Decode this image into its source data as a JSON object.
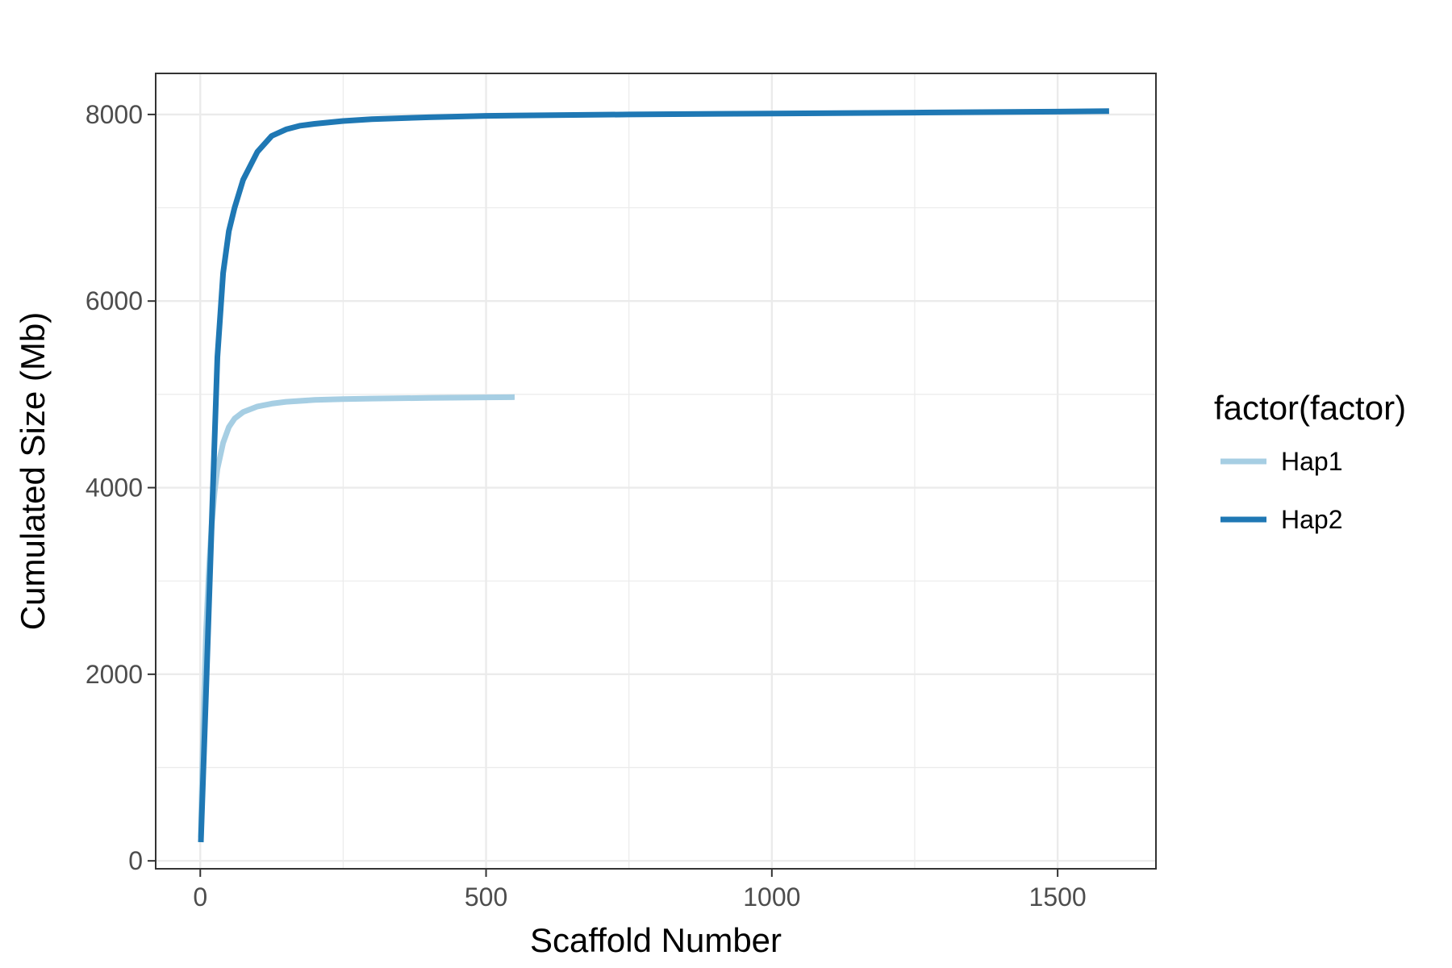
{
  "chart_data": {
    "type": "line",
    "xlabel": "Scaffold Number",
    "ylabel": "Cumulated Size (Mb)",
    "xlim": [
      -78,
      1672
    ],
    "ylim": [
      -85,
      8440
    ],
    "x_ticks": [
      0,
      500,
      1000,
      1500
    ],
    "x_tick_labels": [
      "0",
      "500",
      "1000",
      "1500"
    ],
    "y_ticks": [
      0,
      2000,
      4000,
      6000,
      8000
    ],
    "y_tick_labels": [
      "0",
      "2000",
      "4000",
      "6000",
      "8000"
    ],
    "grid": true,
    "legend": {
      "title": "factor(factor)",
      "position": "right"
    },
    "series": [
      {
        "name": "Hap1",
        "color": "#a6cee3",
        "x": [
          1,
          5,
          10,
          15,
          20,
          25,
          30,
          40,
          50,
          60,
          75,
          100,
          125,
          150,
          200,
          250,
          300,
          400,
          500,
          550
        ],
        "y": [
          250,
          1400,
          2450,
          3100,
          3600,
          3950,
          4200,
          4480,
          4650,
          4740,
          4810,
          4870,
          4900,
          4920,
          4940,
          4950,
          4955,
          4962,
          4968,
          4970
        ]
      },
      {
        "name": "Hap2",
        "color": "#1f78b4",
        "x": [
          1,
          5,
          10,
          20,
          30,
          40,
          50,
          60,
          75,
          100,
          125,
          150,
          175,
          200,
          250,
          300,
          400,
          500,
          750,
          1000,
          1250,
          1500,
          1590
        ],
        "y": [
          200,
          900,
          1800,
          3600,
          5400,
          6300,
          6750,
          7000,
          7300,
          7600,
          7770,
          7840,
          7880,
          7900,
          7930,
          7950,
          7970,
          7985,
          8000,
          8010,
          8020,
          8030,
          8035
        ]
      }
    ]
  }
}
